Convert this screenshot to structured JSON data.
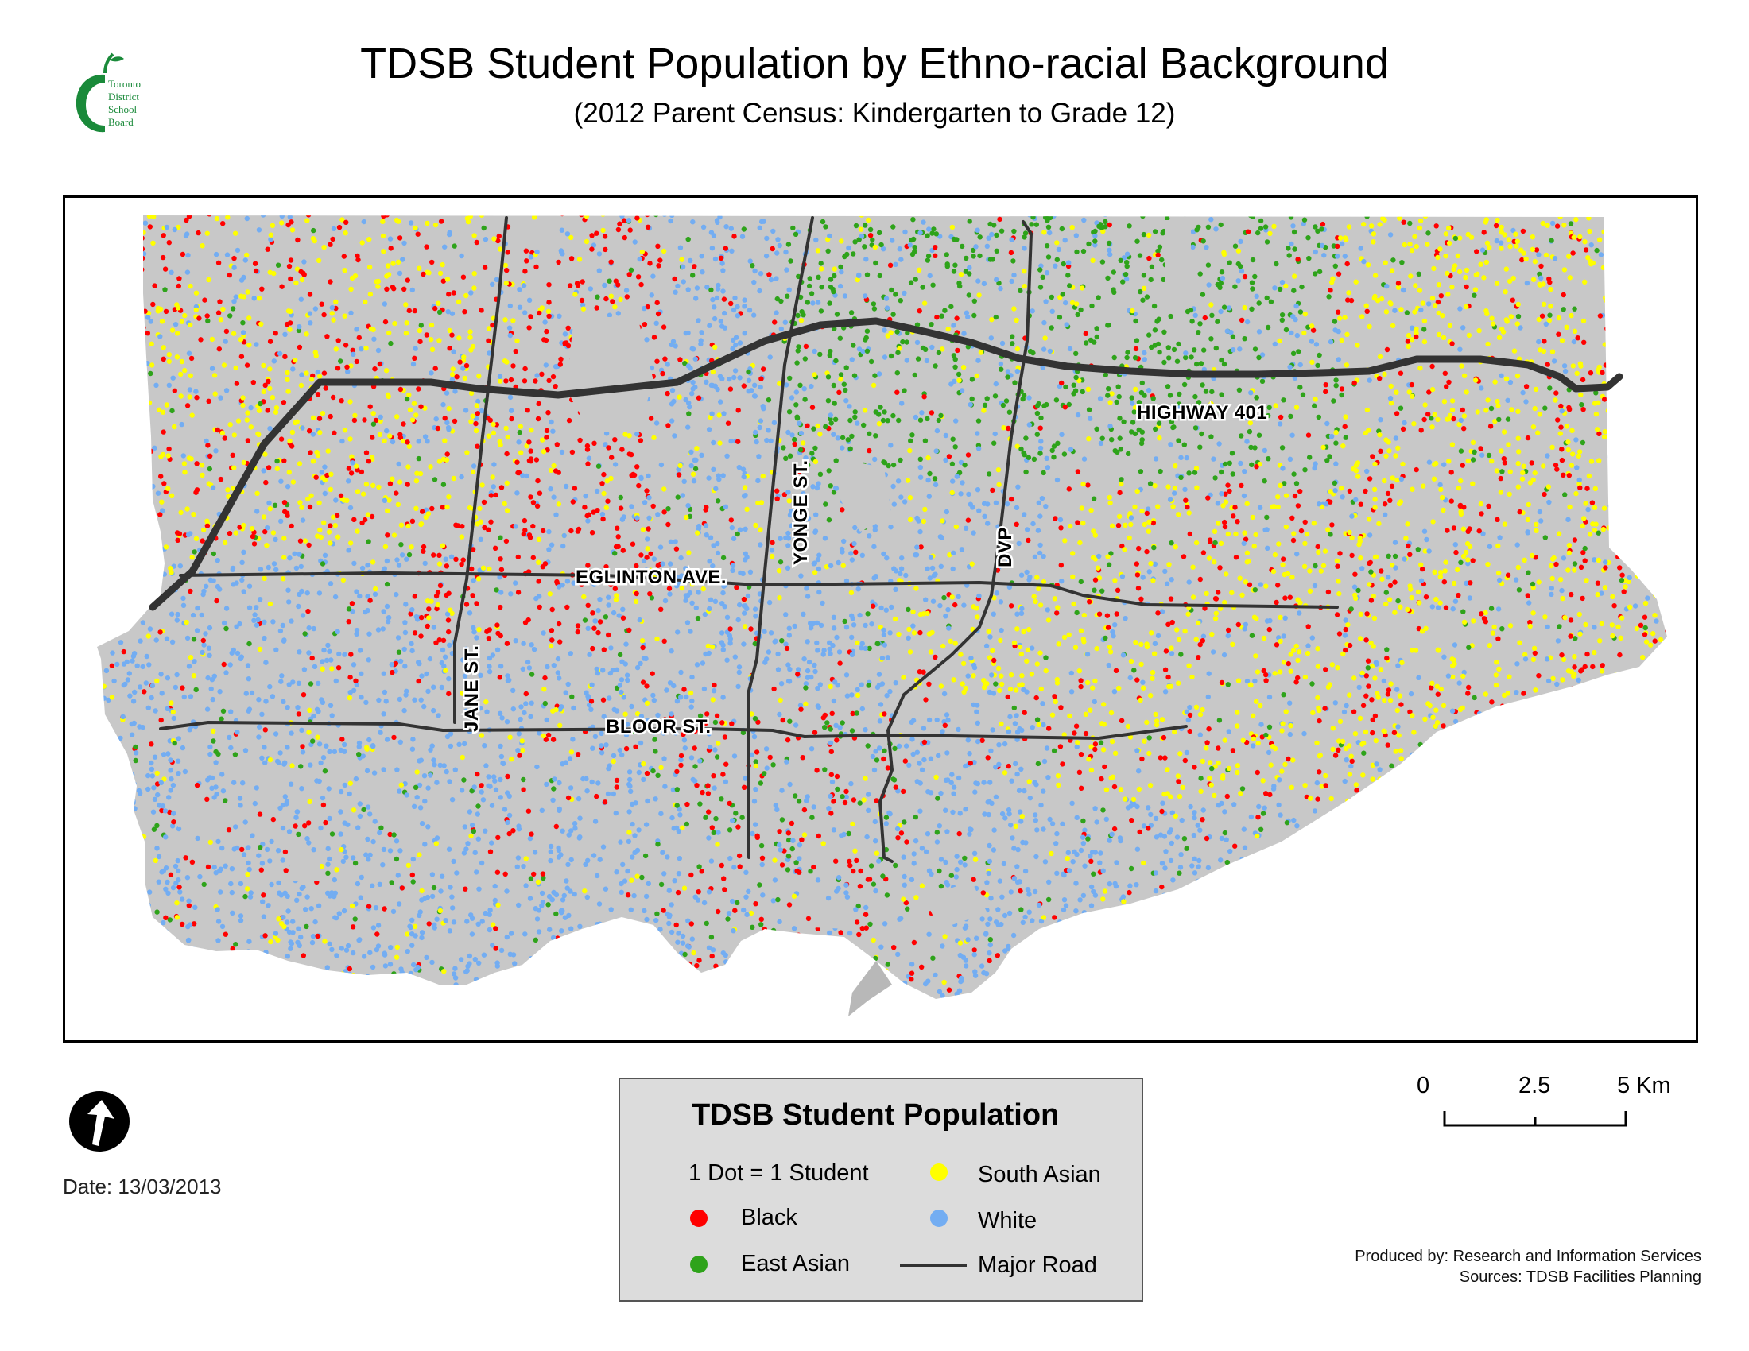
{
  "header": {
    "title": "TDSB Student Population by Ethno-racial Background",
    "subtitle": "(2012 Parent Census: Kindergarten to Grade 12)"
  },
  "logo": {
    "lines": [
      "Toronto",
      "District",
      "School",
      "Board"
    ],
    "color": "#1a8a3a"
  },
  "map": {
    "roads": [
      {
        "name": "HIGHWAY 401"
      },
      {
        "name": "YONGE ST."
      },
      {
        "name": "DVP"
      },
      {
        "name": "EGLINTON AVE."
      },
      {
        "name": "JANE ST."
      },
      {
        "name": "BLOOR ST."
      }
    ],
    "colors": {
      "black": "#ff0000",
      "east_asian": "#2ea31a",
      "south_asian": "#ffff00",
      "white": "#73adf2",
      "land": "#c8c8c8",
      "road": "#333333"
    }
  },
  "date": "Date: 13/03/2013",
  "legend": {
    "title": "TDSB Student Population",
    "dot_note": "1 Dot = 1 Student",
    "items": [
      {
        "label": "Black",
        "color": "#ff0000"
      },
      {
        "label": "East Asian",
        "color": "#2ea31a"
      },
      {
        "label": "South Asian",
        "color": "#ffff00"
      },
      {
        "label": "White",
        "color": "#73adf2"
      },
      {
        "label": "Major Road",
        "color": "#333333"
      }
    ]
  },
  "scale": {
    "labels": [
      "0",
      "2.5",
      "5 Km"
    ]
  },
  "credits": {
    "produced_by": "Produced by: Research and Information Services",
    "sources": "Sources: TDSB Facilities Planning"
  }
}
